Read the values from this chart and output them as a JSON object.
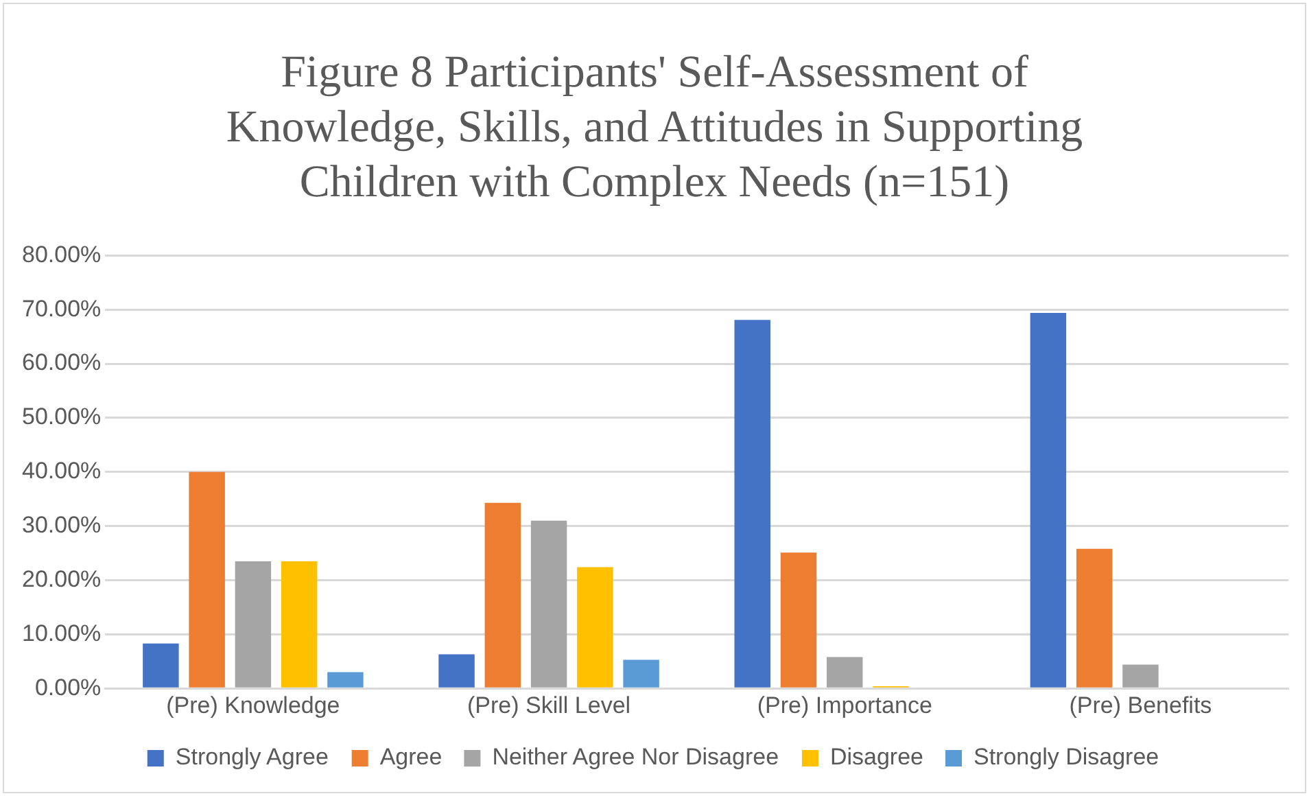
{
  "chart_data": {
    "type": "bar",
    "title": "Figure 8 Participants' Self-Assessment of Knowledge, Skills, and Attitudes in Supporting Children with Complex Needs (n=151)",
    "categories": [
      "(Pre) Knowledge",
      "(Pre) Skill Level",
      "(Pre) Importance",
      "(Pre) Benefits"
    ],
    "series": [
      {
        "name": "Strongly Agree",
        "color": "#4472c4",
        "values": [
          8.3,
          6.3,
          68.1,
          69.4
        ]
      },
      {
        "name": "Agree",
        "color": "#ed7d31",
        "values": [
          40,
          34.3,
          25.1,
          25.8
        ]
      },
      {
        "name": "Neither Agree Nor Disagree",
        "color": "#a5a5a5",
        "values": [
          23.5,
          31,
          5.8,
          4.4
        ]
      },
      {
        "name": "Disagree",
        "color": "#ffc000",
        "values": [
          23.5,
          22.4,
          0.4,
          0
        ]
      },
      {
        "name": "Strongly Disagree",
        "color": "#5b9bd5",
        "values": [
          3,
          5.3,
          0,
          0
        ]
      }
    ],
    "ylim": [
      0,
      80
    ],
    "yticks": [
      {
        "value": 0,
        "label": "0.00%"
      },
      {
        "value": 10,
        "label": "10.00%"
      },
      {
        "value": 20,
        "label": "20.00%"
      },
      {
        "value": 30,
        "label": "30.00%"
      },
      {
        "value": 40,
        "label": "40.00%"
      },
      {
        "value": 50,
        "label": "50.00%"
      },
      {
        "value": 60,
        "label": "60.00%"
      },
      {
        "value": 70,
        "label": "70.00%"
      },
      {
        "value": 80,
        "label": "80.00%"
      }
    ],
    "grid": "y",
    "legend": "bottom"
  }
}
